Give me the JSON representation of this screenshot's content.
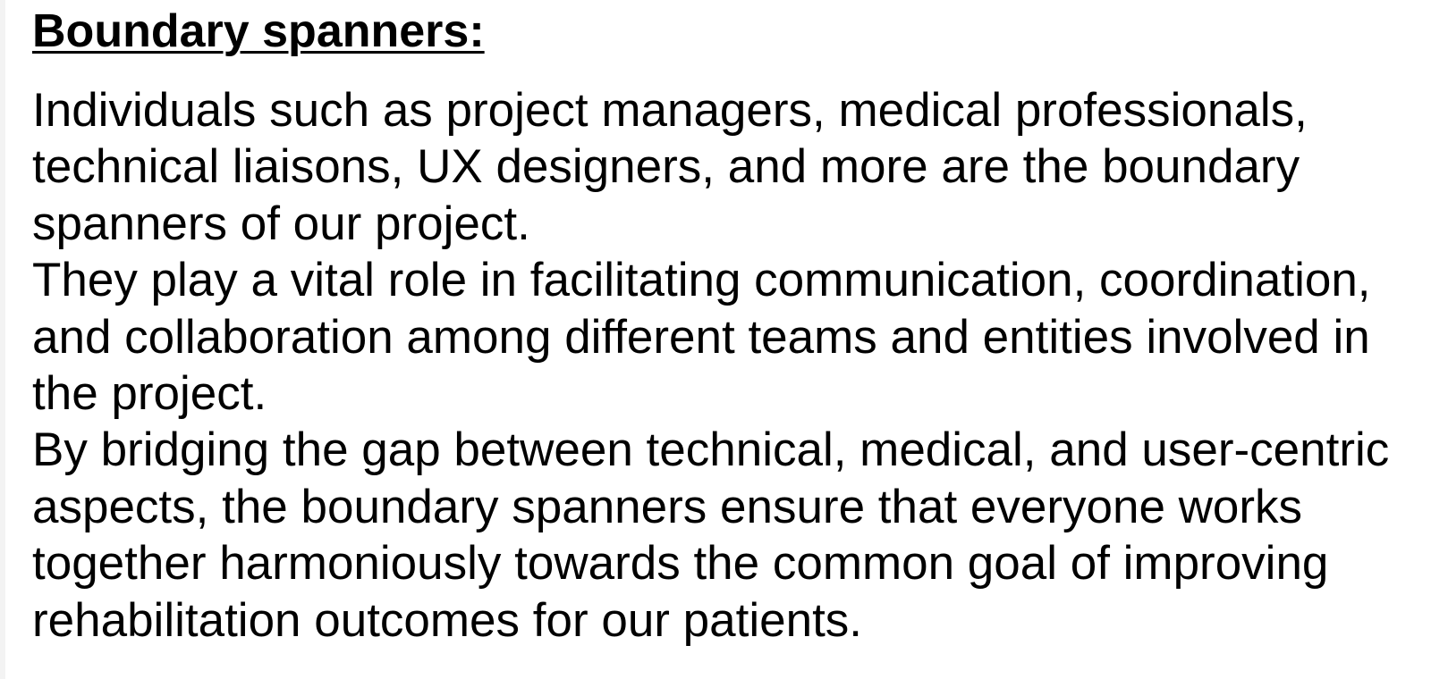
{
  "heading": "Boundary spanners:",
  "paragraphs": [
    "Individuals such as project managers, medical professionals, technical liaisons, UX designers, and more are the boundary spanners of our project.",
    "They play a vital role in facilitating communication, coordination, and collaboration among different teams and entities involved in the project.",
    "By bridging the gap between technical, medical, and user-centric aspects, the boundary spanners ensure that everyone works together harmoniously towards the common goal of improving rehabilitation outcomes for our patients."
  ]
}
